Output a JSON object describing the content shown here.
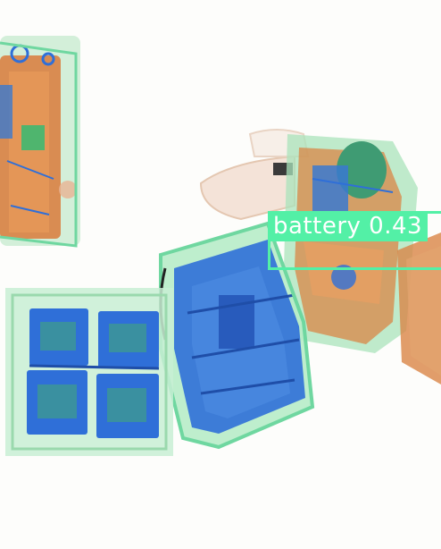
{
  "detection": {
    "class_name": "battery",
    "confidence": "0.43",
    "box_color": "#53f0a6",
    "label_text_color": "#ffffff"
  },
  "palette": {
    "background": "#fdfdfb",
    "organic": "#d97a3a",
    "inorganic": "#2f6fd8",
    "mixed": "#6fd7a0"
  }
}
